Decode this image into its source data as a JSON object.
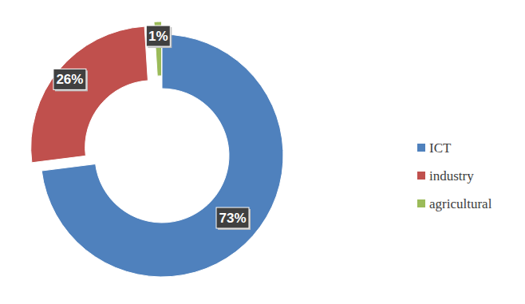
{
  "chart_data": {
    "type": "pie",
    "categories": [
      "ICT",
      "industry",
      "agricultural"
    ],
    "values": [
      73,
      26,
      1
    ],
    "value_labels": [
      "73%",
      "26%",
      "1%"
    ],
    "colors": [
      "#4f81bd",
      "#c0504d",
      "#9bbb59"
    ],
    "data_labels": true,
    "legend": "right"
  }
}
